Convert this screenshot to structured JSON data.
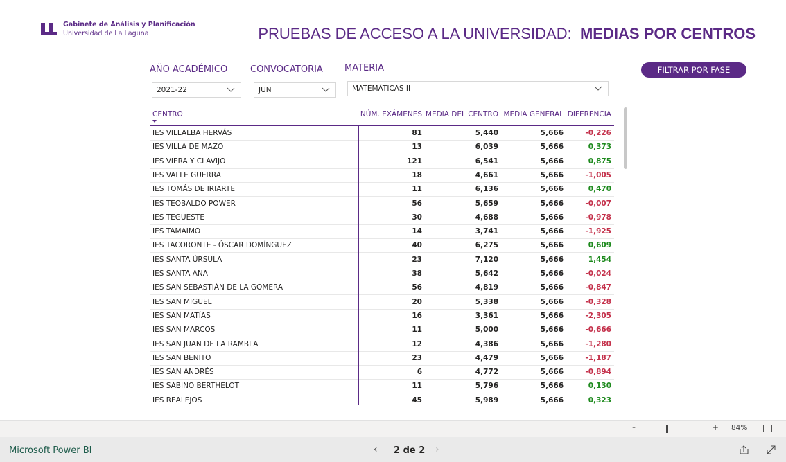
{
  "header": {
    "org": "Gabinete de Análisis y Planificación",
    "university": "Universidad de La Laguna",
    "title": "PRUEBAS DE ACCESO A LA UNIVERSIDAD:",
    "title_bold": "MEDIAS POR CENTROS"
  },
  "filters": [
    {
      "label": "AÑO ACADÉMICO",
      "value": "2021-22"
    },
    {
      "label": "CONVOCATORIA",
      "value": "JUN"
    },
    {
      "label": "MATERIA",
      "value": "MATEMÁTICAS II"
    }
  ],
  "button": "FILTRAR POR FASE",
  "table": {
    "columns": [
      "CENTRO",
      "NÚM. EXÁMENES",
      "MEDIA DEL CENTRO",
      "MEDIA GENERAL",
      "DIFERENCIA"
    ],
    "rows": [
      [
        "IES VILLALBA HERVÁS",
        81,
        "5,440",
        "5,666",
        "-0,226"
      ],
      [
        "IES VILLA DE MAZO",
        13,
        "6,039",
        "5,666",
        "0,373"
      ],
      [
        "IES VIERA Y CLAVIJO",
        121,
        "6,541",
        "5,666",
        "0,875"
      ],
      [
        "IES VALLE GUERRA",
        18,
        "4,661",
        "5,666",
        "-1,005"
      ],
      [
        "IES TOMÁS DE IRIARTE",
        11,
        "6,136",
        "5,666",
        "0,470"
      ],
      [
        "IES TEOBALDO POWER",
        56,
        "5,659",
        "5,666",
        "-0,007"
      ],
      [
        "IES TEGUESTE",
        30,
        "4,688",
        "5,666",
        "-0,978"
      ],
      [
        "IES TAMAIMO",
        14,
        "3,741",
        "5,666",
        "-1,925"
      ],
      [
        "IES TACORONTE - ÓSCAR DOMÍNGUEZ",
        40,
        "6,275",
        "5,666",
        "0,609"
      ],
      [
        "IES SANTA ÚRSULA",
        23,
        "7,120",
        "5,666",
        "1,454"
      ],
      [
        "IES SANTA ANA",
        38,
        "5,642",
        "5,666",
        "-0,024"
      ],
      [
        "IES SAN SEBASTIÁN DE LA GOMERA",
        56,
        "4,819",
        "5,666",
        "-0,847"
      ],
      [
        "IES SAN MIGUEL",
        20,
        "5,338",
        "5,666",
        "-0,328"
      ],
      [
        "IES SAN MATÍAS",
        16,
        "3,361",
        "5,666",
        "-2,305"
      ],
      [
        "IES SAN MARCOS",
        11,
        "5,000",
        "5,666",
        "-0,666"
      ],
      [
        "IES SAN JUAN DE LA RAMBLA",
        12,
        "4,386",
        "5,666",
        "-1,280"
      ],
      [
        "IES SAN BENITO",
        23,
        "4,479",
        "5,666",
        "-1,187"
      ],
      [
        "IES SAN ANDRÉS",
        6,
        "4,772",
        "5,666",
        "-0,894"
      ],
      [
        "IES SABINO BERTHELOT",
        11,
        "5,796",
        "5,666",
        "0,130"
      ],
      [
        "IES REALEJOS",
        45,
        "5,989",
        "5,666",
        "0,323"
      ]
    ]
  },
  "footer": {
    "zoom": "84%",
    "page": "2 de 2",
    "brand": "Microsoft Power BI"
  }
}
